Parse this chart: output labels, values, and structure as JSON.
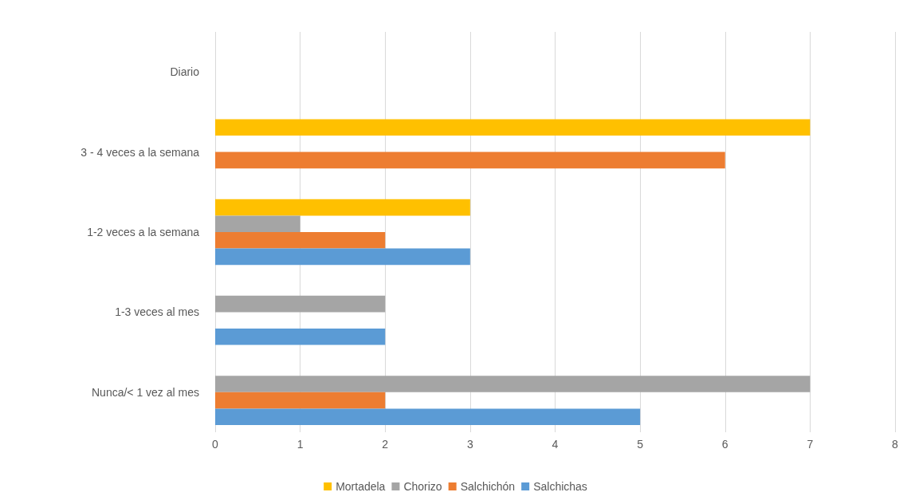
{
  "chart_data": {
    "type": "bar",
    "orientation": "horizontal",
    "categories": [
      "Diario",
      "3 - 4 veces a la semana",
      "1-2 veces a la semana",
      "1-3 veces al mes",
      "Nunca/< 1 vez al mes"
    ],
    "series": [
      {
        "name": "Mortadela",
        "color": "#ffc000",
        "values": [
          0,
          7,
          3,
          0,
          0
        ]
      },
      {
        "name": "Chorizo",
        "color": "#a5a5a5",
        "values": [
          0,
          0,
          1,
          2,
          7
        ]
      },
      {
        "name": "Salchichón",
        "color": "#ed7d31",
        "values": [
          0,
          6,
          2,
          0,
          2
        ]
      },
      {
        "name": "Salchichas",
        "color": "#5b9bd5",
        "values": [
          0,
          0,
          3,
          2,
          5
        ]
      }
    ],
    "xlim": [
      0,
      8
    ],
    "xticks": [
      0,
      1,
      2,
      3,
      4,
      5,
      6,
      7,
      8
    ],
    "grid": "x",
    "legend": "bottom"
  }
}
